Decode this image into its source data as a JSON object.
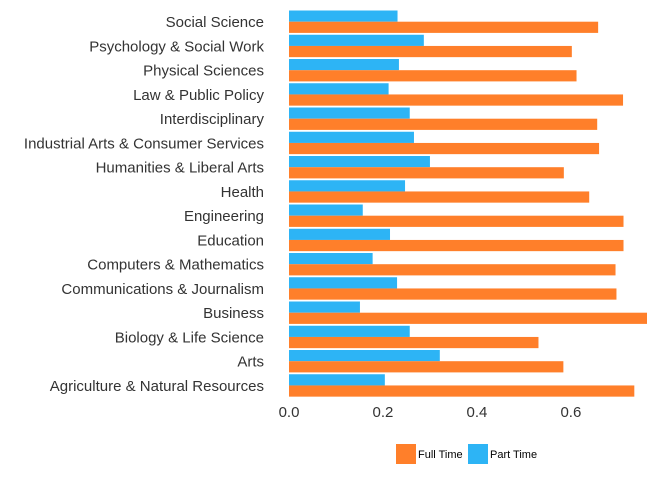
{
  "chart_data": {
    "type": "bar",
    "orientation": "horizontal",
    "categories": [
      "Social Science",
      "Psychology & Social Work",
      "Physical Sciences",
      "Law & Public Policy",
      "Interdisciplinary",
      "Industrial Arts & Consumer Services",
      "Humanities & Liberal Arts",
      "Health",
      "Engineering",
      "Education",
      "Computers & Mathematics",
      "Communications & Journalism",
      "Business",
      "Biology & Life Science",
      "Arts",
      "Agriculture & Natural Resources"
    ],
    "series": [
      {
        "name": "Full Time",
        "color": "#ff7f2a",
        "values": [
          0.658,
          0.602,
          0.612,
          0.711,
          0.656,
          0.66,
          0.585,
          0.639,
          0.712,
          0.712,
          0.695,
          0.697,
          0.762,
          0.531,
          0.584,
          0.735
        ]
      },
      {
        "name": "Part Time",
        "color": "#2db4f5",
        "values": [
          0.231,
          0.287,
          0.234,
          0.212,
          0.257,
          0.266,
          0.3,
          0.247,
          0.157,
          0.215,
          0.178,
          0.23,
          0.151,
          0.257,
          0.321,
          0.204
        ]
      }
    ],
    "x_ticks": [
      "0.0",
      "0.2",
      "0.4",
      "0.6"
    ],
    "xlim": [
      0,
      0.762
    ],
    "grid": false,
    "legend_position": "bottom",
    "title": "",
    "xlabel": "",
    "ylabel": ""
  }
}
